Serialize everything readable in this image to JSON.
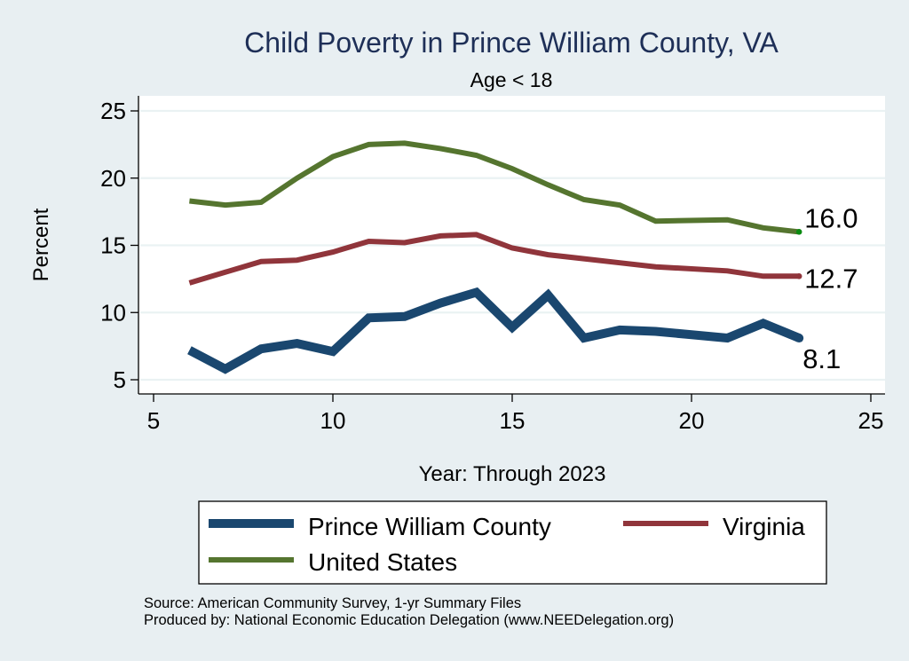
{
  "chart_data": {
    "type": "line",
    "title": "Child Poverty in Prince William County, VA",
    "subtitle": "Age < 18",
    "xlabel": "Year: Through 2023",
    "ylabel": "Percent",
    "xlim": [
      5,
      25
    ],
    "ylim": [
      5,
      25
    ],
    "xticks": [
      5,
      10,
      15,
      20,
      25
    ],
    "yticks": [
      5,
      10,
      15,
      20,
      25
    ],
    "xtick_labels": [
      "5",
      "10",
      "15",
      "20",
      "25"
    ],
    "ytick_labels": [
      "5",
      "10",
      "15",
      "20",
      "25"
    ],
    "grid": "horizontal",
    "legend_position": "bottom",
    "series": [
      {
        "name": "Prince William County",
        "color": "#1a476f",
        "x": [
          6,
          7,
          8,
          9,
          10,
          11,
          12,
          13,
          14,
          15,
          16,
          17,
          18,
          19,
          21,
          22,
          23
        ],
        "values": [
          7.2,
          5.8,
          7.3,
          7.7,
          7.1,
          9.6,
          9.7,
          10.7,
          11.5,
          8.9,
          11.3,
          8.1,
          8.7,
          8.6,
          8.1,
          9.2,
          8.1
        ],
        "end_label": "8.1"
      },
      {
        "name": "Virginia",
        "color": "#90353b",
        "x": [
          6,
          7,
          8,
          9,
          10,
          11,
          12,
          13,
          14,
          15,
          16,
          17,
          18,
          19,
          21,
          22,
          23
        ],
        "values": [
          12.2,
          13.0,
          13.8,
          13.9,
          14.5,
          15.3,
          15.2,
          15.7,
          15.8,
          14.8,
          14.3,
          14.0,
          13.7,
          13.4,
          13.1,
          12.7,
          12.7
        ],
        "end_label": "12.7"
      },
      {
        "name": "United States",
        "color": "#55752f",
        "x": [
          6,
          7,
          8,
          9,
          10,
          11,
          12,
          13,
          14,
          15,
          16,
          17,
          18,
          19,
          21,
          22,
          23
        ],
        "values": [
          18.3,
          18.0,
          18.2,
          20.0,
          21.6,
          22.5,
          22.6,
          22.2,
          21.7,
          20.7,
          19.5,
          18.4,
          18.0,
          16.8,
          16.9,
          16.3,
          16.0
        ],
        "end_label": "16.0"
      }
    ]
  },
  "footer": {
    "source": "Source: American Community Survey, 1-yr Summary Files",
    "produced_by": "Produced by: National Economic Education Delegation (www.NEEDelegation.org)"
  }
}
